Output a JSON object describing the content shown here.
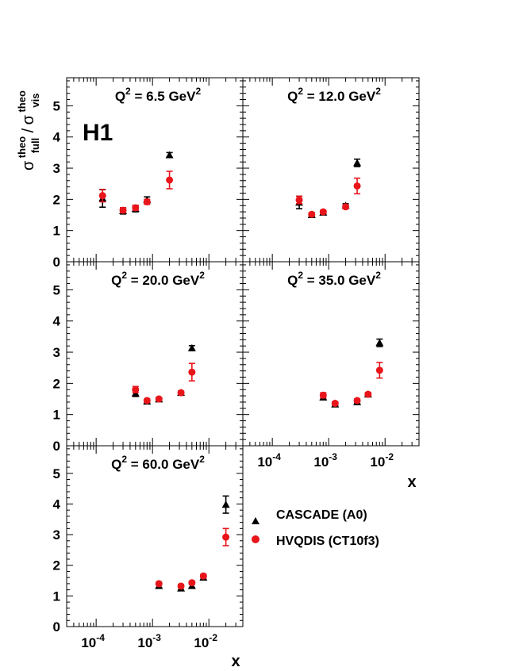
{
  "figure": {
    "experiment_label": "H1",
    "y_axis_label": {
      "symbol": "σ",
      "numerator_sub": "full",
      "numerator_sup": "theo",
      "separator": "/",
      "denominator_sub": "vis",
      "denominator_sup": "theo"
    },
    "x_axis_label": "x",
    "x_tick_labels": [
      {
        "base": "10",
        "exp": "-4",
        "value": 0.0001
      },
      {
        "base": "10",
        "exp": "-3",
        "value": 0.001
      },
      {
        "base": "10",
        "exp": "-2",
        "value": 0.01
      }
    ],
    "legend": [
      {
        "label": "CASCADE (A0)",
        "marker": "triangle",
        "color": "#000000"
      },
      {
        "label": "HVQDIS (CT10f3)",
        "marker": "circle",
        "color": "#e8151b"
      }
    ]
  },
  "chart_data": [
    {
      "type": "scatter",
      "title_prefix": "Q",
      "title_sup": "2",
      "title_value": " = 6.5 GeV",
      "title_unit_sup": "2",
      "ylim": [
        0,
        5.9
      ],
      "xscale": "log",
      "xlim": [
        3e-05,
        0.04
      ],
      "yticks": [
        0,
        1,
        2,
        3,
        4,
        5
      ],
      "series": [
        {
          "name": "CASCADE (A0)",
          "color": "#000000",
          "marker": "triangle",
          "x": [
            0.00013,
            0.0003,
            0.0005,
            0.0008,
            0.002
          ],
          "y": [
            2.03,
            1.63,
            1.7,
            1.98,
            3.42
          ],
          "err": [
            0.28,
            0.1,
            0.1,
            0.1,
            0.08
          ]
        },
        {
          "name": "HVQDIS (CT10f3)",
          "color": "#e8151b",
          "marker": "circle",
          "x": [
            0.00013,
            0.0003,
            0.0005,
            0.0008,
            0.002
          ],
          "y": [
            2.12,
            1.65,
            1.73,
            1.92,
            2.62
          ],
          "err": [
            0.2,
            0.08,
            0.08,
            0.08,
            0.28
          ]
        }
      ]
    },
    {
      "type": "scatter",
      "title_prefix": "Q",
      "title_sup": "2",
      "title_value": " = 12.0 GeV",
      "title_unit_sup": "2",
      "ylim": [
        0,
        5.9
      ],
      "xscale": "log",
      "xlim": [
        3e-05,
        0.04
      ],
      "yticks": [
        0,
        1,
        2,
        3,
        4,
        5
      ],
      "series": [
        {
          "name": "CASCADE (A0)",
          "color": "#000000",
          "marker": "triangle",
          "x": [
            0.0003,
            0.0005,
            0.0008,
            0.002,
            0.0032
          ],
          "y": [
            1.9,
            1.5,
            1.58,
            1.8,
            3.17
          ],
          "err": [
            0.2,
            0.06,
            0.06,
            0.06,
            0.12
          ]
        },
        {
          "name": "HVQDIS (CT10f3)",
          "color": "#e8151b",
          "marker": "circle",
          "x": [
            0.0003,
            0.0005,
            0.0008,
            0.002,
            0.0032
          ],
          "y": [
            1.98,
            1.52,
            1.6,
            1.76,
            2.43
          ],
          "err": [
            0.12,
            0.05,
            0.05,
            0.05,
            0.25
          ]
        }
      ]
    },
    {
      "type": "scatter",
      "title_prefix": "Q",
      "title_sup": "2",
      "title_value": " = 20.0 GeV",
      "title_unit_sup": "2",
      "ylim": [
        0,
        5.9
      ],
      "xscale": "log",
      "xlim": [
        3e-05,
        0.04
      ],
      "yticks": [
        0,
        1,
        2,
        3,
        4,
        5
      ],
      "series": [
        {
          "name": "CASCADE (A0)",
          "color": "#000000",
          "marker": "triangle",
          "x": [
            0.0005,
            0.0008,
            0.0013,
            0.0032,
            0.005
          ],
          "y": [
            1.68,
            1.42,
            1.49,
            1.7,
            3.13
          ],
          "err": [
            0.1,
            0.05,
            0.05,
            0.05,
            0.08
          ]
        },
        {
          "name": "HVQDIS (CT10f3)",
          "color": "#e8151b",
          "marker": "circle",
          "x": [
            0.0005,
            0.0008,
            0.0013,
            0.0032,
            0.005
          ],
          "y": [
            1.8,
            1.45,
            1.5,
            1.7,
            2.36
          ],
          "err": [
            0.1,
            0.05,
            0.05,
            0.05,
            0.28
          ]
        }
      ]
    },
    {
      "type": "scatter",
      "title_prefix": "Q",
      "title_sup": "2",
      "title_value": " = 35.0 GeV",
      "title_unit_sup": "2",
      "ylim": [
        0,
        5.9
      ],
      "xscale": "log",
      "xlim": [
        3e-05,
        0.04
      ],
      "yticks": [
        0,
        1,
        2,
        3,
        4,
        5
      ],
      "series": [
        {
          "name": "CASCADE (A0)",
          "color": "#000000",
          "marker": "triangle",
          "x": [
            0.0008,
            0.0013,
            0.0032,
            0.005,
            0.008
          ],
          "y": [
            1.55,
            1.33,
            1.4,
            1.65,
            3.3
          ],
          "err": [
            0.06,
            0.05,
            0.05,
            0.05,
            0.12
          ]
        },
        {
          "name": "HVQDIS (CT10f3)",
          "color": "#e8151b",
          "marker": "circle",
          "x": [
            0.0008,
            0.0013,
            0.0032,
            0.005,
            0.008
          ],
          "y": [
            1.62,
            1.36,
            1.45,
            1.65,
            2.42
          ],
          "err": [
            0.08,
            0.05,
            0.05,
            0.05,
            0.25
          ]
        }
      ]
    },
    {
      "type": "scatter",
      "title_prefix": "Q",
      "title_sup": "2",
      "title_value": " = 60.0 GeV",
      "title_unit_sup": "2",
      "ylim": [
        0,
        5.9
      ],
      "xscale": "log",
      "xlim": [
        3e-05,
        0.04
      ],
      "yticks": [
        0,
        1,
        2,
        3,
        4,
        5
      ],
      "series": [
        {
          "name": "CASCADE (A0)",
          "color": "#000000",
          "marker": "triangle",
          "x": [
            0.0013,
            0.0032,
            0.005,
            0.008,
            0.02
          ],
          "y": [
            1.33,
            1.25,
            1.33,
            1.6,
            3.98
          ],
          "err": [
            0.06,
            0.06,
            0.06,
            0.06,
            0.28
          ]
        },
        {
          "name": "HVQDIS (CT10f3)",
          "color": "#e8151b",
          "marker": "circle",
          "x": [
            0.0013,
            0.0032,
            0.005,
            0.008,
            0.02
          ],
          "y": [
            1.4,
            1.32,
            1.43,
            1.65,
            2.92
          ],
          "err": [
            0.05,
            0.05,
            0.05,
            0.06,
            0.28
          ]
        }
      ]
    }
  ]
}
